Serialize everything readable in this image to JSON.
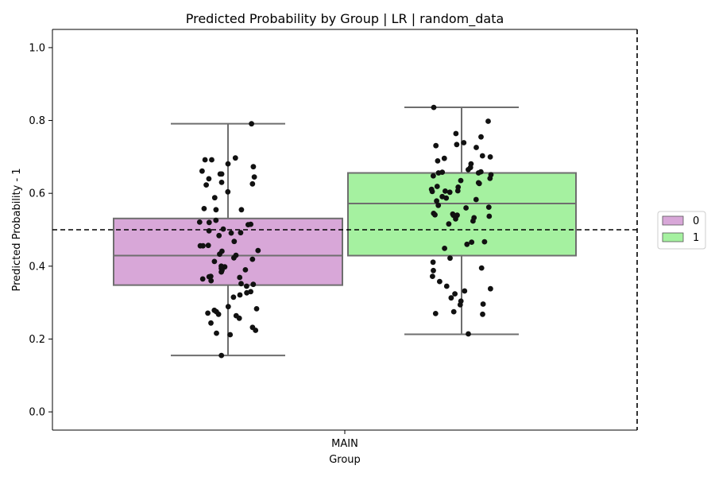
{
  "chart_data": {
    "type": "box",
    "title": "Predicted Probability by Group | LR | random_data",
    "xlabel": "Group",
    "ylabel": "Predicted Probability - 1",
    "categories": [
      "MAIN"
    ],
    "ylim": [
      -0.05,
      1.05
    ],
    "yticks": [
      "0.0",
      "0.2",
      "0.4",
      "0.6",
      "0.8",
      "1.0"
    ],
    "threshold": 0.5,
    "grid": false,
    "legend_position": "right",
    "series": [
      {
        "name": "0",
        "color": "#d8a7d8",
        "whisker_low": 0.155,
        "q1": 0.348,
        "median": 0.429,
        "q3": 0.531,
        "whisker_high": 0.791,
        "points": [
          0.791,
          0.673,
          0.661,
          0.63,
          0.626,
          0.623,
          0.653,
          0.681,
          0.697,
          0.692,
          0.692,
          0.645,
          0.653,
          0.64,
          0.604,
          0.588,
          0.558,
          0.555,
          0.555,
          0.526,
          0.521,
          0.515,
          0.52,
          0.514,
          0.502,
          0.497,
          0.491,
          0.484,
          0.492,
          0.468,
          0.456,
          0.457,
          0.441,
          0.456,
          0.443,
          0.433,
          0.43,
          0.423,
          0.419,
          0.413,
          0.4,
          0.398,
          0.394,
          0.39,
          0.389,
          0.384,
          0.372,
          0.371,
          0.369,
          0.365,
          0.36,
          0.352,
          0.345,
          0.35,
          0.33,
          0.327,
          0.321,
          0.315,
          0.289,
          0.283,
          0.279,
          0.275,
          0.271,
          0.268,
          0.264,
          0.257,
          0.244,
          0.232,
          0.224,
          0.216,
          0.212,
          0.155
        ]
      },
      {
        "name": "1",
        "color": "#a5f1a0",
        "whisker_low": 0.213,
        "q1": 0.429,
        "median": 0.572,
        "q3": 0.656,
        "whisker_high": 0.836,
        "points": [
          0.836,
          0.798,
          0.764,
          0.755,
          0.739,
          0.734,
          0.731,
          0.726,
          0.703,
          0.696,
          0.7,
          0.689,
          0.681,
          0.671,
          0.665,
          0.659,
          0.658,
          0.656,
          0.656,
          0.651,
          0.648,
          0.641,
          0.635,
          0.629,
          0.627,
          0.619,
          0.617,
          0.611,
          0.606,
          0.607,
          0.605,
          0.603,
          0.591,
          0.587,
          0.583,
          0.579,
          0.567,
          0.562,
          0.56,
          0.545,
          0.543,
          0.541,
          0.54,
          0.54,
          0.537,
          0.533,
          0.53,
          0.524,
          0.516,
          0.467,
          0.466,
          0.46,
          0.449,
          0.422,
          0.411,
          0.395,
          0.388,
          0.372,
          0.358,
          0.345,
          0.338,
          0.332,
          0.324,
          0.313,
          0.304,
          0.296,
          0.294,
          0.275,
          0.27,
          0.268,
          0.214
        ]
      }
    ]
  }
}
